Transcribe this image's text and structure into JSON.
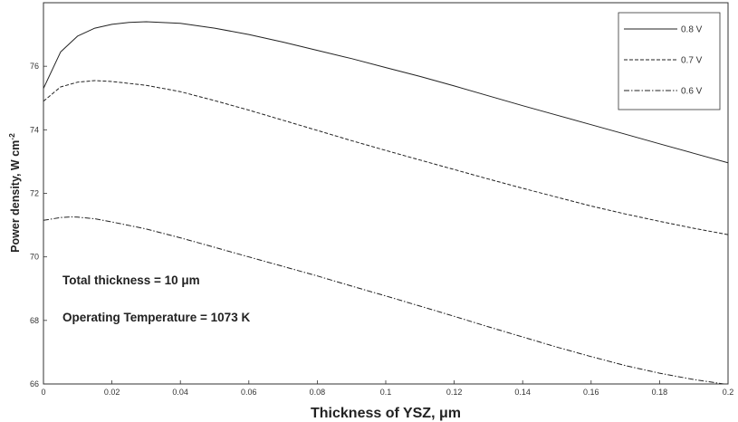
{
  "chart_data": {
    "type": "line",
    "xlabel": "Thickness of YSZ, μm",
    "ylabel_main": "Power density, W cm",
    "ylabel_exp": "-2",
    "xlim": [
      0,
      0.2
    ],
    "ylim": [
      66,
      78
    ],
    "xticks": [
      0,
      0.02,
      0.04,
      0.06,
      0.08,
      0.1,
      0.12,
      0.14,
      0.16,
      0.18,
      0.2
    ],
    "xtick_labels": [
      "0",
      "0.02",
      "0.04",
      "0.06",
      "0.08",
      "0.1",
      "0.12",
      "0.14",
      "0.16",
      "0.18",
      "0.2"
    ],
    "yticks": [
      66,
      68,
      70,
      72,
      74,
      76
    ],
    "ytick_labels": [
      "66",
      "68",
      "70",
      "72",
      "74",
      "76"
    ],
    "grid": false,
    "legend_position": "top-right",
    "annotations": [
      "Total thickness = 10 μm",
      "Operating Temperature = 1073 K"
    ],
    "series": [
      {
        "name": "0.8 V",
        "style": "solid",
        "color": "#222222",
        "x": [
          0,
          0.005,
          0.01,
          0.015,
          0.02,
          0.025,
          0.03,
          0.04,
          0.05,
          0.06,
          0.07,
          0.08,
          0.09,
          0.1,
          0.11,
          0.12,
          0.13,
          0.14,
          0.15,
          0.16,
          0.17,
          0.18,
          0.19,
          0.2
        ],
        "y": [
          75.3,
          76.45,
          76.95,
          77.2,
          77.32,
          77.38,
          77.4,
          77.35,
          77.2,
          77.0,
          76.76,
          76.5,
          76.24,
          75.96,
          75.68,
          75.38,
          75.07,
          74.76,
          74.46,
          74.16,
          73.86,
          73.56,
          73.26,
          72.96
        ]
      },
      {
        "name": "0.7 V",
        "style": "dashed",
        "color": "#222222",
        "x": [
          0,
          0.005,
          0.01,
          0.015,
          0.02,
          0.03,
          0.04,
          0.05,
          0.06,
          0.07,
          0.08,
          0.09,
          0.1,
          0.11,
          0.12,
          0.13,
          0.14,
          0.15,
          0.16,
          0.17,
          0.18,
          0.19,
          0.2
        ],
        "y": [
          74.9,
          75.35,
          75.5,
          75.55,
          75.52,
          75.4,
          75.2,
          74.92,
          74.62,
          74.3,
          73.98,
          73.66,
          73.35,
          73.05,
          72.75,
          72.45,
          72.16,
          71.88,
          71.6,
          71.35,
          71.12,
          70.9,
          70.7
        ]
      },
      {
        "name": "0.6 V",
        "style": "dashdot",
        "color": "#222222",
        "x": [
          0,
          0.005,
          0.008,
          0.01,
          0.015,
          0.02,
          0.03,
          0.04,
          0.05,
          0.06,
          0.07,
          0.08,
          0.09,
          0.1,
          0.11,
          0.12,
          0.13,
          0.14,
          0.15,
          0.16,
          0.17,
          0.18,
          0.19,
          0.2
        ],
        "y": [
          71.15,
          71.24,
          71.26,
          71.25,
          71.2,
          71.1,
          70.88,
          70.6,
          70.3,
          70.0,
          69.7,
          69.4,
          69.08,
          68.77,
          68.45,
          68.13,
          67.8,
          67.48,
          67.16,
          66.86,
          66.58,
          66.34,
          66.14,
          65.98
        ]
      }
    ]
  }
}
